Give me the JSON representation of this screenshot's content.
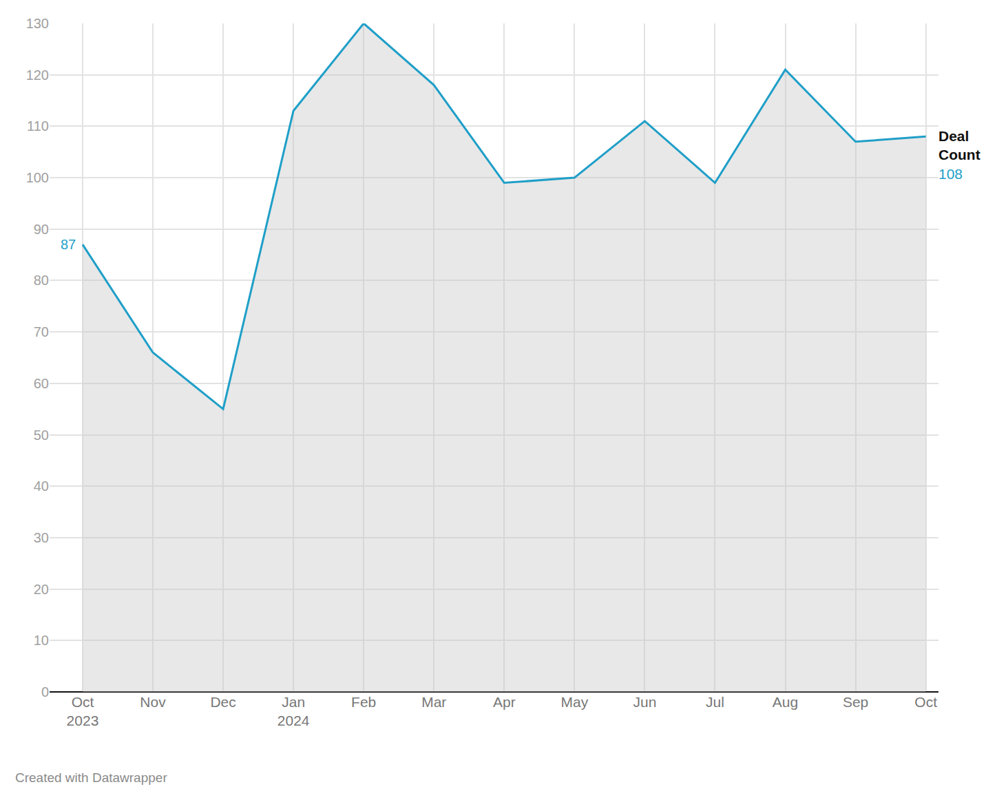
{
  "chart_data": {
    "type": "line",
    "categories": [
      "Oct 2023",
      "Nov",
      "Dec",
      "Jan 2024",
      "Feb",
      "Mar",
      "Apr",
      "May",
      "Jun",
      "Jul",
      "Aug",
      "Sep",
      "Oct"
    ],
    "series": [
      {
        "name": "Deal Count",
        "color": "#1f9fc8",
        "values": [
          87,
          66,
          55,
          113,
          130,
          118,
          99,
          100,
          111,
          99,
          121,
          107,
          108
        ]
      }
    ],
    "ylim": [
      0,
      130
    ],
    "yticks": [
      0,
      10,
      20,
      30,
      40,
      50,
      60,
      70,
      80,
      90,
      100,
      110,
      120,
      130
    ],
    "grid": true,
    "credit": "Created with Datawrapper"
  }
}
